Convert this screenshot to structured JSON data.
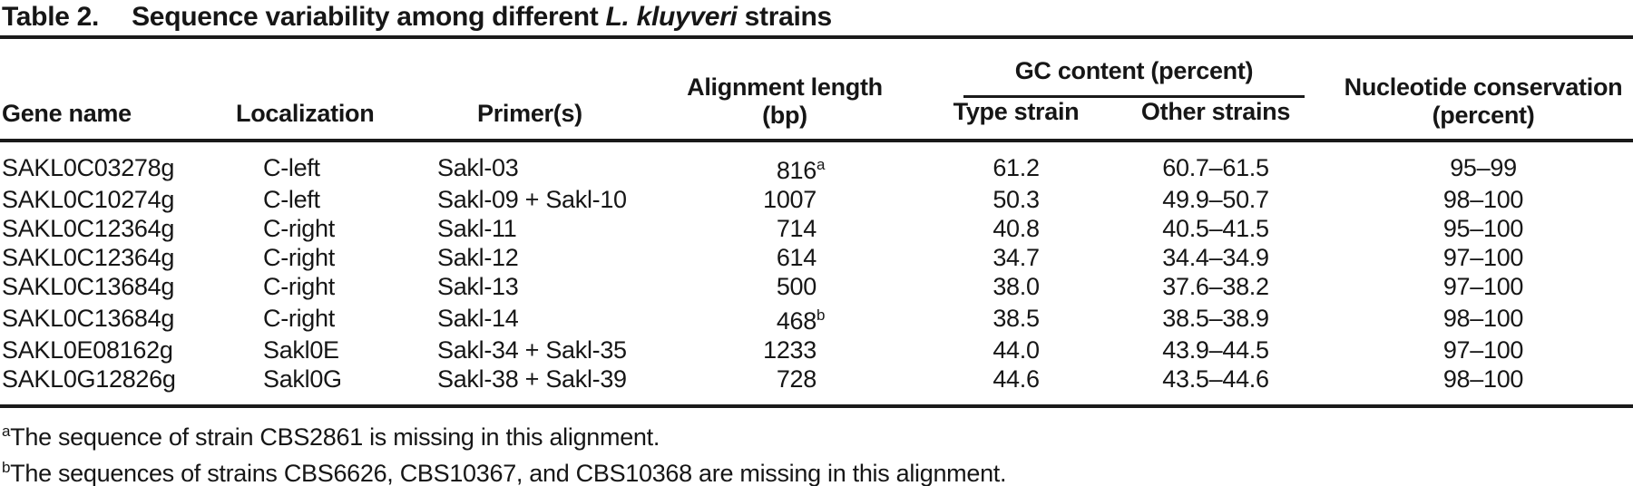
{
  "title": {
    "label": "Table 2.",
    "text_before": "Sequence variability among different ",
    "species": "L. kluyveri",
    "text_after": " strains"
  },
  "columns": {
    "gene": "Gene name",
    "localization": "Localization",
    "primers": "Primer(s)",
    "alignment_length_line1": "Alignment length",
    "alignment_length_line2": "(bp)",
    "gc_spanner": "GC content (percent)",
    "type_strain": "Type strain",
    "other_strains": "Other strains",
    "conservation_line1": "Nucleotide conservation",
    "conservation_line2": "(percent)"
  },
  "rows": [
    {
      "gene": "SAKL0C03278g",
      "localization": "C-left",
      "primers": "Sakl-03",
      "alignment_length": "816",
      "alignment_sup": "a",
      "gc_type": "61.2",
      "gc_other": "60.7–61.5",
      "conservation": "95–99"
    },
    {
      "gene": "SAKL0C10274g",
      "localization": "C-left",
      "primers": "Sakl-09 + Sakl-10",
      "alignment_length": "1007",
      "alignment_sup": "",
      "gc_type": "50.3",
      "gc_other": "49.9–50.7",
      "conservation": "98–100"
    },
    {
      "gene": "SAKL0C12364g",
      "localization": "C-right",
      "primers": "Sakl-11",
      "alignment_length": "714",
      "alignment_sup": "",
      "gc_type": "40.8",
      "gc_other": "40.5–41.5",
      "conservation": "95–100"
    },
    {
      "gene": "SAKL0C12364g",
      "localization": "C-right",
      "primers": "Sakl-12",
      "alignment_length": "614",
      "alignment_sup": "",
      "gc_type": "34.7",
      "gc_other": "34.4–34.9",
      "conservation": "97–100"
    },
    {
      "gene": "SAKL0C13684g",
      "localization": "C-right",
      "primers": "Sakl-13",
      "alignment_length": "500",
      "alignment_sup": "",
      "gc_type": "38.0",
      "gc_other": "37.6–38.2",
      "conservation": "97–100"
    },
    {
      "gene": "SAKL0C13684g",
      "localization": "C-right",
      "primers": "Sakl-14",
      "alignment_length": "468",
      "alignment_sup": "b",
      "gc_type": "38.5",
      "gc_other": "38.5–38.9",
      "conservation": "98–100"
    },
    {
      "gene": "SAKL0E08162g",
      "localization": "Sakl0E",
      "primers": "Sakl-34 + Sakl-35",
      "alignment_length": "1233",
      "alignment_sup": "",
      "gc_type": "44.0",
      "gc_other": "43.9–44.5",
      "conservation": "97–100"
    },
    {
      "gene": "SAKL0G12826g",
      "localization": "Sakl0G",
      "primers": "Sakl-38 + Sakl-39",
      "alignment_length": "728",
      "alignment_sup": "",
      "gc_type": "44.6",
      "gc_other": "43.5–44.6",
      "conservation": "98–100"
    }
  ],
  "footnotes": [
    {
      "marker": "a",
      "text": "The sequence of strain CBS2861 is missing in this alignment."
    },
    {
      "marker": "b",
      "text": "The sequences of strains CBS6626, CBS10367, and CBS10368 are missing in this alignment."
    }
  ],
  "colors": {
    "text": "#161616",
    "rule": "#1a1a1a",
    "background": "#ffffff"
  }
}
